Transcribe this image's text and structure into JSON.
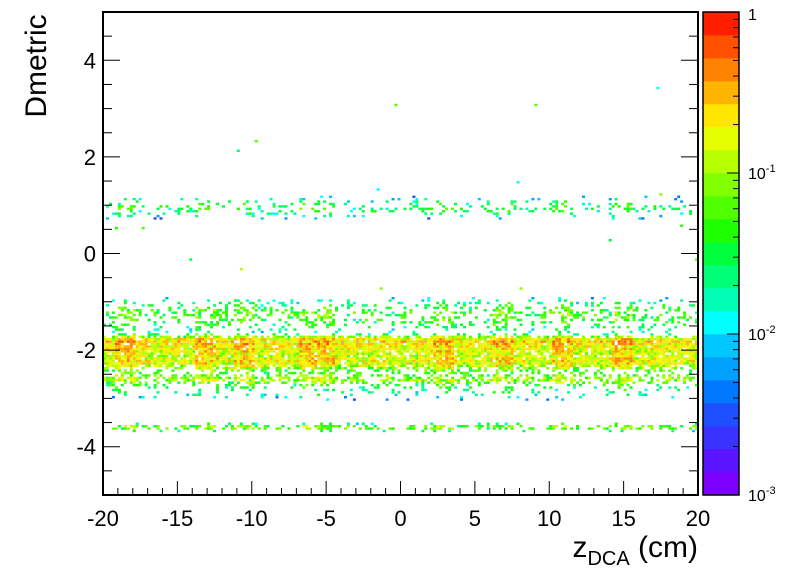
{
  "chart_data": {
    "type": "heatmap",
    "title": "",
    "ylabel": "Dmetric",
    "xlabel_main": "z",
    "xlabel_sub": "DCA",
    "xlabel_unit": " (cm)",
    "xlim": [
      -20,
      20
    ],
    "ylim": [
      -5,
      5
    ],
    "x_ticks": [
      -20,
      -15,
      -10,
      -5,
      0,
      5,
      10,
      15,
      20
    ],
    "y_ticks": [
      -4,
      -2,
      0,
      2,
      4
    ],
    "z_scale": "log",
    "zlim": [
      0.001,
      1
    ],
    "z_ticks": [
      {
        "base": "1",
        "exp": "",
        "value": 1
      },
      {
        "base": "10",
        "exp": "-1",
        "value": 0.1
      },
      {
        "base": "10",
        "exp": "-2",
        "value": 0.01
      },
      {
        "base": "10",
        "exp": "-3",
        "value": 0.001
      }
    ],
    "palette": [
      "#7d00ff",
      "#5a14ff",
      "#3a32ff",
      "#1e50ff",
      "#0078ff",
      "#00a0ff",
      "#00c8ff",
      "#00ffff",
      "#00ffb4",
      "#00ff78",
      "#00ff3c",
      "#1eff00",
      "#50ff00",
      "#82ff00",
      "#b4ff00",
      "#e6ff00",
      "#ffe600",
      "#ffb400",
      "#ff8200",
      "#ff5000",
      "#ff1e00"
    ],
    "bands": [
      {
        "y": -1.82,
        "spread": 0.07,
        "z": 0.2
      },
      {
        "y": -2.0,
        "spread": 0.1,
        "z": 0.16
      },
      {
        "y": -2.22,
        "spread": 0.07,
        "z": 0.12
      },
      {
        "y": -2.32,
        "spread": 0.1,
        "z": 0.08
      },
      {
        "y": -2.6,
        "spread": 0.07,
        "z": 0.08
      },
      {
        "y": -1.2,
        "spread": 0.15,
        "z": 0.04
      },
      {
        "y": -1.45,
        "spread": 0.12,
        "z": 0.025
      },
      {
        "y": -2.8,
        "spread": 0.15,
        "z": 0.02
      },
      {
        "y": 0.95,
        "spread": 0.12,
        "z": 0.03
      },
      {
        "y": -3.6,
        "spread": 0.05,
        "z": 0.06
      }
    ],
    "hot_columns": [
      -18.5,
      -13,
      -10.5,
      -6,
      -5,
      3,
      7,
      11,
      15
    ]
  }
}
